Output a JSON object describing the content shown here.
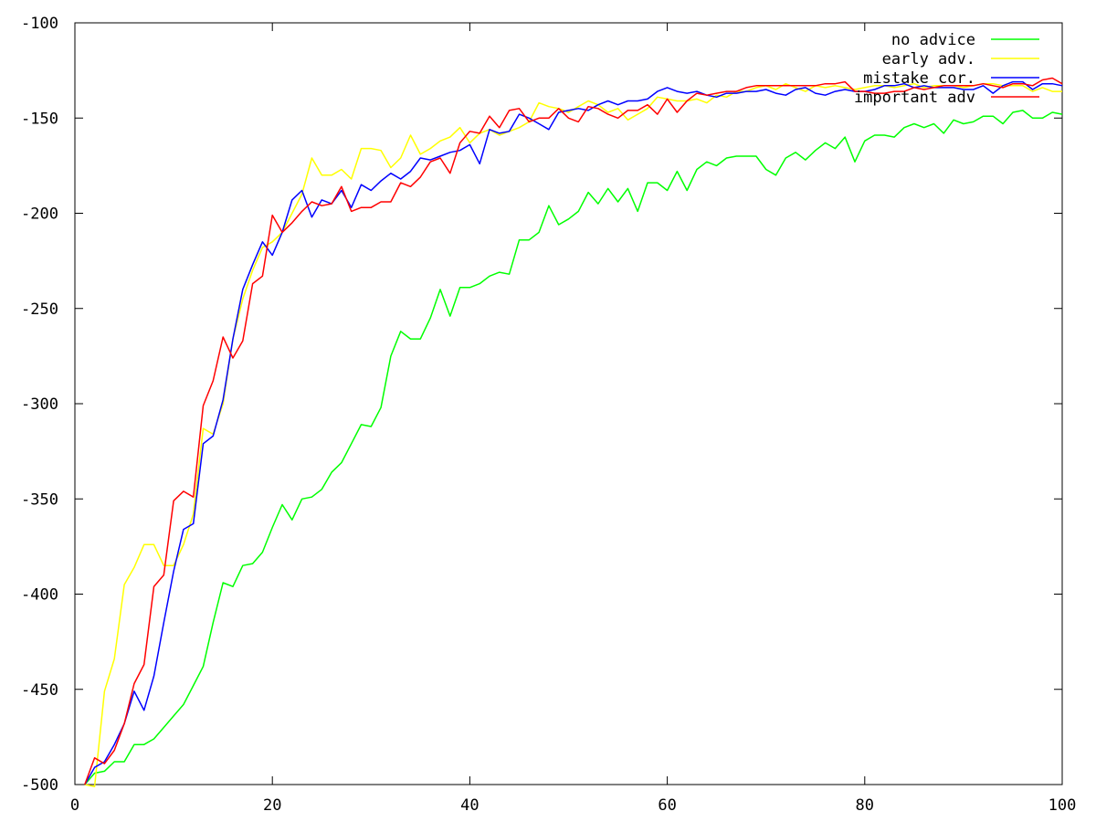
{
  "chart_data": {
    "type": "line",
    "title": "",
    "xlabel": "",
    "ylabel": "",
    "xlim": [
      0,
      100
    ],
    "ylim": [
      -500,
      -100
    ],
    "x_ticks": [
      0,
      20,
      40,
      60,
      80,
      100
    ],
    "y_ticks": [
      -500,
      -450,
      -400,
      -350,
      -300,
      -250,
      -200,
      -150,
      -100
    ],
    "grid": false,
    "legend_position": "top-right",
    "x": [
      1,
      2,
      3,
      4,
      5,
      6,
      7,
      8,
      9,
      10,
      11,
      12,
      13,
      14,
      15,
      16,
      17,
      18,
      19,
      20,
      21,
      22,
      23,
      24,
      25,
      26,
      27,
      28,
      29,
      30,
      31,
      32,
      33,
      34,
      35,
      36,
      37,
      38,
      39,
      40,
      41,
      42,
      43,
      44,
      45,
      46,
      47,
      48,
      49,
      50,
      51,
      52,
      53,
      54,
      55,
      56,
      57,
      58,
      59,
      60,
      61,
      62,
      63,
      64,
      65,
      66,
      67,
      68,
      69,
      70,
      71,
      72,
      73,
      74,
      75,
      76,
      77,
      78,
      79,
      80,
      81,
      82,
      83,
      84,
      85,
      86,
      87,
      88,
      89,
      90,
      91,
      92,
      93,
      94,
      95,
      96,
      97,
      98,
      99,
      100
    ],
    "series": [
      {
        "name": "no advice",
        "color": "#00ff00",
        "values": [
          -500,
          -494,
          -493,
          -488,
          -488,
          -479,
          -479,
          -476,
          -470,
          -464,
          -458,
          -448,
          -438,
          -415,
          -394,
          -396,
          -385,
          -384,
          -378,
          -365,
          -353,
          -361,
          -350,
          -349,
          -345,
          -336,
          -331,
          -321,
          -311,
          -312,
          -302,
          -275,
          -262,
          -266,
          -266,
          -255,
          -240,
          -254,
          -239,
          -239,
          -237,
          -233,
          -231,
          -232,
          -214,
          -214,
          -210,
          -196,
          -206,
          -203,
          -199,
          -189,
          -195,
          -187,
          -194,
          -187,
          -199,
          -184,
          -184,
          -188,
          -178,
          -188,
          -177,
          -173,
          -175,
          -171,
          -170,
          -170,
          -170,
          -177,
          -180,
          -171,
          -168,
          -172,
          -167,
          -163,
          -166,
          -160,
          -173,
          -162,
          -159,
          -159,
          -160,
          -155,
          -153,
          -155,
          -153,
          -158,
          -151,
          -153,
          -152,
          -149,
          -149,
          -153,
          -147,
          -146,
          -150,
          -150,
          -147,
          -148
        ]
      },
      {
        "name": "early adv.",
        "color": "#ffff00",
        "values": [
          -500,
          -501,
          -451,
          -434,
          -395,
          -386,
          -374,
          -374,
          -385,
          -385,
          -374,
          -358,
          -313,
          -316,
          -300,
          -266,
          -245,
          -230,
          -218,
          -215,
          -210,
          -200,
          -190,
          -171,
          -180,
          -180,
          -177,
          -182,
          -166,
          -166,
          -167,
          -176,
          -171,
          -159,
          -169,
          -166,
          -162,
          -160,
          -155,
          -163,
          -158,
          -156,
          -159,
          -157,
          -155,
          -152,
          -142,
          -144,
          -145,
          -147,
          -144,
          -141,
          -143,
          -147,
          -145,
          -151,
          -148,
          -145,
          -139,
          -140,
          -141,
          -141,
          -140,
          -142,
          -138,
          -139,
          -136,
          -136,
          -134,
          -133,
          -135,
          -132,
          -134,
          -136,
          -133,
          -134,
          -133,
          -134,
          -135,
          -134,
          -133,
          -133,
          -134,
          -133,
          -132,
          -134,
          -133,
          -133,
          -133,
          -134,
          -133,
          -132,
          -132,
          -133,
          -133,
          -133,
          -136,
          -134,
          -136,
          -136
        ]
      },
      {
        "name": "mistake cor.",
        "color": "#0000ff",
        "values": [
          -500,
          -491,
          -488,
          -479,
          -468,
          -451,
          -461,
          -443,
          -415,
          -388,
          -366,
          -363,
          -321,
          -317,
          -298,
          -266,
          -240,
          -227,
          -215,
          -222,
          -210,
          -193,
          -188,
          -202,
          -193,
          -195,
          -188,
          -197,
          -185,
          -188,
          -183,
          -179,
          -182,
          -178,
          -171,
          -172,
          -170,
          -168,
          -167,
          -164,
          -174,
          -156,
          -158,
          -157,
          -148,
          -150,
          -153,
          -156,
          -147,
          -146,
          -145,
          -146,
          -143,
          -141,
          -143,
          -141,
          -141,
          -140,
          -136,
          -134,
          -136,
          -137,
          -136,
          -138,
          -139,
          -137,
          -137,
          -136,
          -136,
          -135,
          -137,
          -138,
          -135,
          -134,
          -137,
          -138,
          -136,
          -135,
          -136,
          -136,
          -135,
          -133,
          -133,
          -132,
          -134,
          -133,
          -134,
          -134,
          -134,
          -135,
          -135,
          -133,
          -137,
          -133,
          -131,
          -131,
          -135,
          -132,
          -132,
          -133
        ]
      },
      {
        "name": "important adv",
        "color": "#ff0000",
        "values": [
          -500,
          -486,
          -489,
          -482,
          -468,
          -447,
          -437,
          -396,
          -390,
          -351,
          -346,
          -349,
          -301,
          -288,
          -265,
          -276,
          -267,
          -237,
          -233,
          -201,
          -210,
          -205,
          -199,
          -194,
          -196,
          -195,
          -186,
          -199,
          -197,
          -197,
          -194,
          -194,
          -184,
          -186,
          -181,
          -173,
          -171,
          -179,
          -163,
          -157,
          -158,
          -149,
          -155,
          -146,
          -145,
          -152,
          -150,
          -150,
          -145,
          -150,
          -152,
          -144,
          -145,
          -148,
          -150,
          -146,
          -146,
          -143,
          -148,
          -140,
          -147,
          -141,
          -137,
          -138,
          -137,
          -136,
          -136,
          -134,
          -133,
          -133,
          -133,
          -133,
          -133,
          -133,
          -133,
          -132,
          -132,
          -131,
          -136,
          -136,
          -137,
          -137,
          -136,
          -136,
          -134,
          -135,
          -134,
          -133,
          -133,
          -133,
          -133,
          -132,
          -133,
          -134,
          -132,
          -132,
          -133,
          -130,
          -129,
          -132
        ]
      }
    ]
  }
}
